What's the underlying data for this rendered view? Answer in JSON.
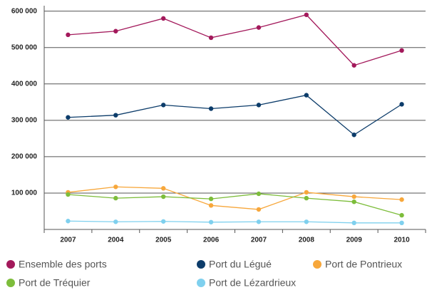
{
  "chart_data": {
    "type": "line",
    "categories": [
      "2007",
      "2004",
      "2005",
      "2006",
      "2007",
      "2008",
      "2009",
      "2010"
    ],
    "series": [
      {
        "name": "Ensemble des ports",
        "color": "#a3195b",
        "values": [
          535000,
          545000,
          580000,
          527000,
          555000,
          590000,
          451000,
          492000
        ]
      },
      {
        "name": "Port du Légué",
        "color": "#0c3c6a",
        "values": [
          308000,
          314000,
          342000,
          332000,
          342000,
          369000,
          260000,
          344000
        ]
      },
      {
        "name": "Port de Pontrieux",
        "color": "#f7a73b",
        "values": [
          102000,
          117000,
          113000,
          66000,
          55000,
          102000,
          90000,
          82000
        ]
      },
      {
        "name": "Port de Tréquier",
        "color": "#7dbd3b",
        "values": [
          96000,
          86000,
          90000,
          84000,
          98000,
          86000,
          76000,
          39000
        ]
      },
      {
        "name": "Port de Lézardrieux",
        "color": "#7fd0ee",
        "values": [
          23000,
          21000,
          22000,
          20000,
          21000,
          21000,
          18000,
          18000
        ]
      }
    ],
    "ylim": [
      0,
      615000
    ],
    "yticks": [
      {
        "value": 100000,
        "label": "100 000"
      },
      {
        "value": 200000,
        "label": "200 000"
      },
      {
        "value": 300000,
        "label": "300 000"
      },
      {
        "value": 400000,
        "label": "400 000"
      },
      {
        "value": 500000,
        "label": "500 000"
      },
      {
        "value": 600000,
        "label": "600 000"
      }
    ],
    "grid": true
  }
}
